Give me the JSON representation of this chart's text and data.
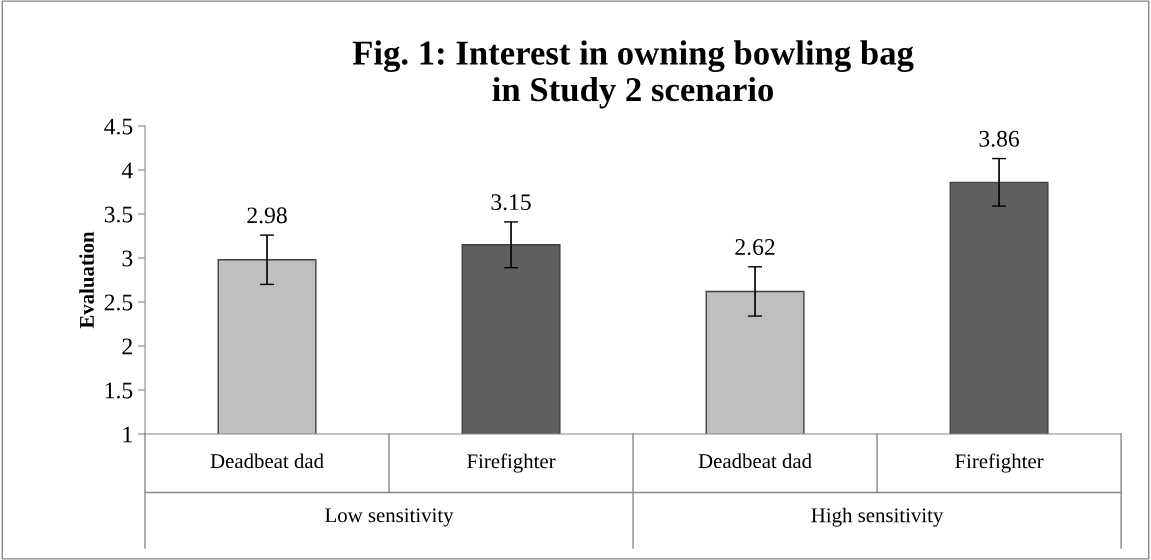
{
  "chart_data": {
    "type": "bar",
    "title": "Fig. 1: Interest in owning bowling bag\nin Study 2 scenario",
    "ylabel": "Evaluation",
    "categories": [
      "Deadbeat dad",
      "Firefighter",
      "Deadbeat dad",
      "Firefighter"
    ],
    "values": [
      2.98,
      3.15,
      2.62,
      3.86
    ],
    "colors": [
      "#bfbfbf",
      "#5f5f5f",
      "#bfbfbf",
      "#5f5f5f"
    ],
    "errors": [
      0.28,
      0.26,
      0.28,
      0.27
    ],
    "annotations": [
      "Low sensitivity",
      "High sensitivity"
    ],
    "data_labels": true,
    "ylim": [
      1,
      4.5
    ],
    "yticks": [
      1,
      1.5,
      2,
      2.5,
      3,
      3.5,
      4,
      4.5
    ]
  }
}
